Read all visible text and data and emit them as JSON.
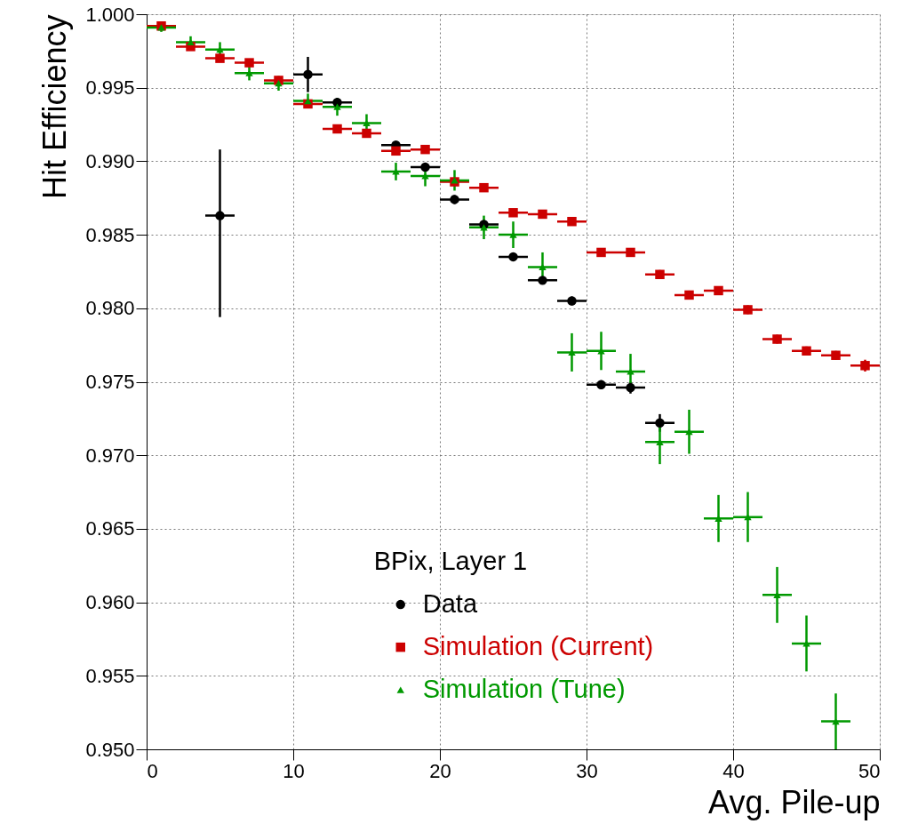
{
  "chart_data": {
    "type": "scatter",
    "xlabel": "Avg. Pile-up",
    "ylabel": "Hit Efficiency",
    "legend_title": "BPix, Layer 1",
    "legend": "bottom",
    "grid": true,
    "xlim": [
      0,
      50
    ],
    "xticks": [
      0,
      10,
      20,
      30,
      40,
      50
    ],
    "ylim": [
      0.95,
      1.0
    ],
    "yticks": [
      {
        "value": 0.95,
        "label": "0.950"
      },
      {
        "value": 0.955,
        "label": "0.955"
      },
      {
        "value": 0.96,
        "label": "0.960"
      },
      {
        "value": 0.965,
        "label": "0.965"
      },
      {
        "value": 0.97,
        "label": "0.970"
      },
      {
        "value": 0.975,
        "label": "0.975"
      },
      {
        "value": 0.98,
        "label": "0.980"
      },
      {
        "value": 0.985,
        "label": "0.985"
      },
      {
        "value": 0.99,
        "label": "0.990"
      },
      {
        "value": 0.995,
        "label": "0.995"
      },
      {
        "value": 1.0,
        "label": "1.000"
      }
    ],
    "series": [
      {
        "name": "Data",
        "color": "#000000",
        "marker": "circle",
        "x": [
          5,
          11,
          13,
          17,
          19,
          21,
          23,
          25,
          27,
          29,
          31,
          33,
          35
        ],
        "values": [
          0.9863,
          0.9959,
          0.994,
          0.9911,
          0.9896,
          0.9874,
          0.9857,
          0.9835,
          0.9819,
          0.9805,
          0.9748,
          0.9746,
          0.9722
        ],
        "errors": [
          [
            0.9794,
            0.9908
          ],
          0.0012,
          0.0003,
          0.0002,
          0.0003,
          0.0003,
          0.0003,
          0.0002,
          0.0002,
          0.0003,
          0.0003,
          0.0004,
          0.0006
        ],
        "xerrors": [
          1,
          1,
          1,
          1,
          1,
          1,
          1,
          1,
          1,
          1,
          1,
          1,
          1
        ]
      },
      {
        "name": "Simulation (Current)",
        "color": "#cc0000",
        "marker": "square",
        "x": [
          1,
          3,
          5,
          7,
          9,
          11,
          13,
          15,
          17,
          19,
          21,
          23,
          25,
          27,
          29,
          31,
          33,
          35,
          37,
          39,
          41,
          43,
          45,
          47,
          49
        ],
        "values": [
          0.9992,
          0.9978,
          0.997,
          0.9967,
          0.9955,
          0.9939,
          0.9922,
          0.9919,
          0.9907,
          0.9908,
          0.9886,
          0.9882,
          0.9865,
          0.9864,
          0.9859,
          0.9838,
          0.9838,
          0.9823,
          0.9809,
          0.9812,
          0.9799,
          0.9779,
          0.9771,
          0.9768,
          0.9761
        ],
        "errors": [
          0.0002,
          0.0002,
          0.0002,
          0.0002,
          0.0002,
          0.0002,
          0.0002,
          0.0002,
          0.0002,
          0.0002,
          0.0002,
          0.0002,
          0.0002,
          0.0002,
          0.0002,
          0.0002,
          0.0002,
          0.0003,
          0.0003,
          0.0003,
          0.0003,
          0.0003,
          0.0003,
          0.0003,
          0.0004
        ],
        "xerrors": [
          1,
          1,
          1,
          1,
          1,
          1,
          1,
          1,
          1,
          1,
          1,
          1,
          1,
          1,
          1,
          1,
          1,
          1,
          1,
          1,
          1,
          1,
          1,
          1,
          1
        ]
      },
      {
        "name": "Simulation (Tune)",
        "color": "#009900",
        "marker": "triangle",
        "x": [
          1,
          3,
          5,
          7,
          9,
          11,
          13,
          15,
          17,
          19,
          21,
          23,
          25,
          27,
          29,
          31,
          33,
          35,
          37,
          39,
          41,
          43,
          45,
          47
        ],
        "values": [
          0.9991,
          0.9981,
          0.9976,
          0.996,
          0.9953,
          0.9941,
          0.9937,
          0.9926,
          0.9893,
          0.989,
          0.9887,
          0.9855,
          0.985,
          0.9828,
          0.977,
          0.9771,
          0.9757,
          0.9709,
          0.9716,
          0.9657,
          0.9658,
          0.9605,
          0.9572,
          0.9519
        ],
        "errors": [
          0.0003,
          0.0004,
          0.0005,
          0.0005,
          0.0005,
          0.0005,
          0.0006,
          0.0006,
          0.0006,
          0.0007,
          0.0007,
          0.0008,
          0.0009,
          0.001,
          0.0013,
          0.0013,
          0.0012,
          0.0015,
          0.0015,
          0.0016,
          0.0017,
          0.0019,
          0.0019,
          0.0019
        ],
        "xerrors": [
          1,
          1,
          1,
          1,
          1,
          1,
          1,
          1,
          1,
          1,
          1,
          1,
          1,
          1,
          1,
          1,
          1,
          1,
          1,
          1,
          1,
          1,
          1,
          1
        ]
      }
    ]
  }
}
